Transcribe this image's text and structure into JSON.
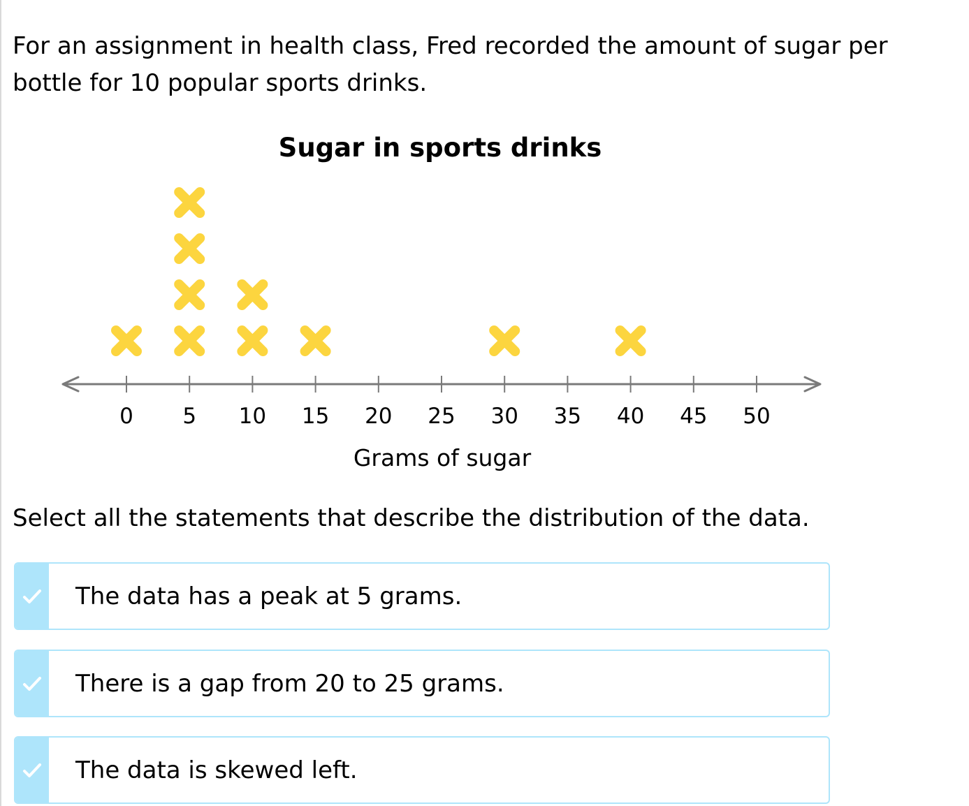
{
  "question": "For an assignment in health class, Fred recorded the amount of sugar per bottle for 10 popular sports drinks.",
  "instruction": "Select all the statements that describe the distribution of the data.",
  "choices": [
    {
      "label": "The data has a peak at 5 grams.",
      "icon": "check-icon"
    },
    {
      "label": "There is a gap from 20 to 25 grams.",
      "icon": "check-icon"
    },
    {
      "label": "The data is skewed left.",
      "icon": "check-icon"
    }
  ],
  "colors": {
    "marker": "#fcd53f",
    "axis": "#7a7a7a",
    "choice_border": "#aee5fb"
  },
  "chart_data": {
    "type": "dot plot",
    "title": "Sugar in sports drinks",
    "xlabel": "Grams of sugar",
    "ticks": [
      0,
      5,
      10,
      15,
      20,
      25,
      30,
      35,
      40,
      45,
      50
    ],
    "xlim": [
      0,
      50
    ],
    "marker": "x",
    "points": [
      {
        "x": 0,
        "count": 1
      },
      {
        "x": 5,
        "count": 4
      },
      {
        "x": 10,
        "count": 2
      },
      {
        "x": 15,
        "count": 1
      },
      {
        "x": 30,
        "count": 1
      },
      {
        "x": 40,
        "count": 1
      }
    ]
  }
}
